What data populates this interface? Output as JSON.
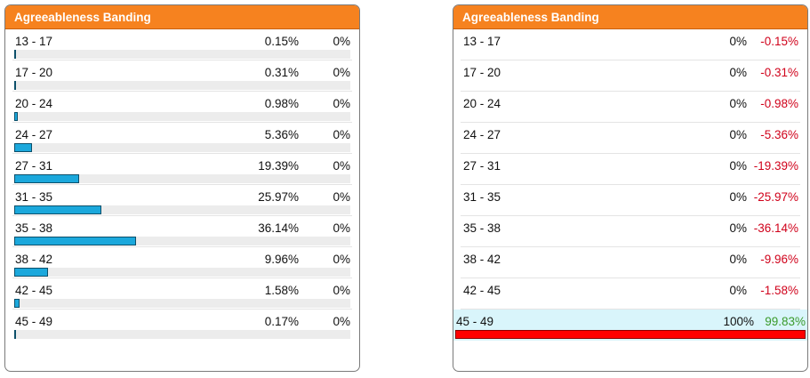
{
  "left_panel": {
    "title": "Agreeableness Banding",
    "rows": [
      {
        "label": "13 - 17",
        "pct": "0.15%",
        "val": "0%",
        "fill": 0.15
      },
      {
        "label": "17 - 20",
        "pct": "0.31%",
        "val": "0%",
        "fill": 0.31
      },
      {
        "label": "20 - 24",
        "pct": "0.98%",
        "val": "0%",
        "fill": 0.98
      },
      {
        "label": "24 - 27",
        "pct": "5.36%",
        "val": "0%",
        "fill": 5.36
      },
      {
        "label": "27 - 31",
        "pct": "19.39%",
        "val": "0%",
        "fill": 19.39
      },
      {
        "label": "31 - 35",
        "pct": "25.97%",
        "val": "0%",
        "fill": 25.97
      },
      {
        "label": "35 - 38",
        "pct": "36.14%",
        "val": "0%",
        "fill": 36.14
      },
      {
        "label": "38 - 42",
        "pct": "9.96%",
        "val": "0%",
        "fill": 9.96
      },
      {
        "label": "42 - 45",
        "pct": "1.58%",
        "val": "0%",
        "fill": 1.58
      },
      {
        "label": "45 - 49",
        "pct": "0.17%",
        "val": "0%",
        "fill": 0.17
      }
    ]
  },
  "right_panel": {
    "title": "Agreeableness Banding",
    "rows": [
      {
        "label": "13 - 17",
        "val": "0%",
        "diff": "-0.15%"
      },
      {
        "label": "17 - 20",
        "val": "0%",
        "diff": "-0.31%"
      },
      {
        "label": "20 - 24",
        "val": "0%",
        "diff": "-0.98%"
      },
      {
        "label": "24 - 27",
        "val": "0%",
        "diff": "-5.36%"
      },
      {
        "label": "27 - 31",
        "val": "0%",
        "diff": "-19.39%"
      },
      {
        "label": "31 - 35",
        "val": "0%",
        "diff": "-25.97%"
      },
      {
        "label": "35 - 38",
        "val": "0%",
        "diff": "-36.14%"
      },
      {
        "label": "38 - 42",
        "val": "0%",
        "diff": "-9.96%"
      },
      {
        "label": "42 - 45",
        "val": "0%",
        "diff": "-1.58%"
      },
      {
        "label": "45 - 49",
        "val": "100%",
        "diff": "99.83%",
        "fill": 100,
        "highlight": true
      }
    ]
  },
  "colors": {
    "header": "#f6821f",
    "bar": "#1ba8dc",
    "bar_highlight": "#ff0000",
    "negative": "#d0021b",
    "positive": "#3a9a2a",
    "row_highlight": "#d9f5fb"
  }
}
